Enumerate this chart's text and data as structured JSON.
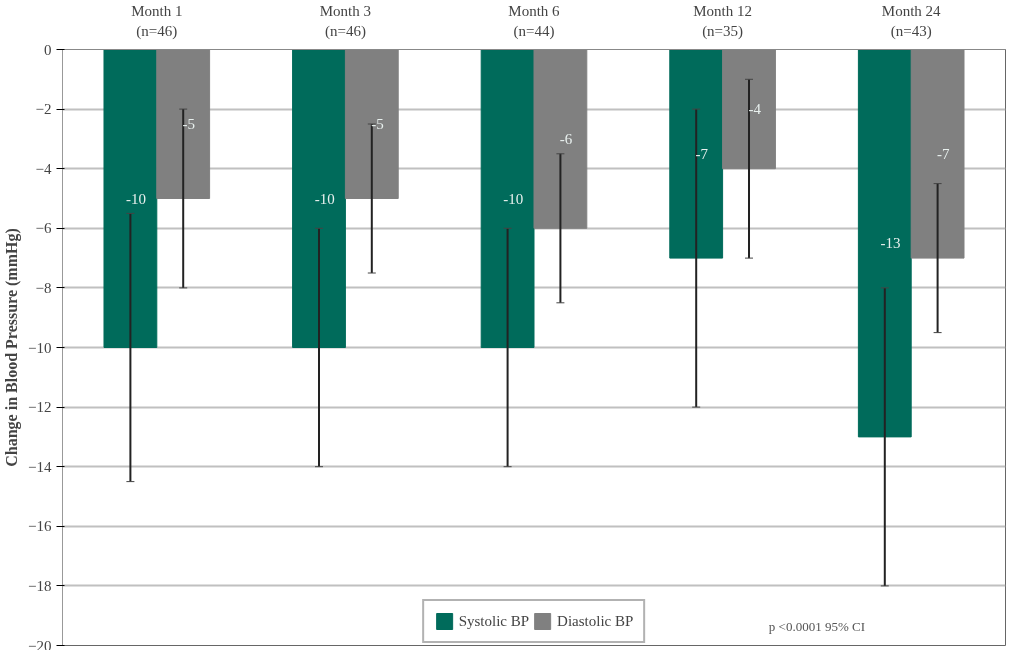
{
  "chart_data": {
    "type": "bar",
    "ylabel": "Change in Blood Pressure (mmHg)",
    "categories": [
      "Month 1\n(n=46)",
      "Month 3\n(n=46)",
      "Month 6\n(n=44)",
      "Month 12\n(n=35)",
      "Month 24\n(n=43)"
    ],
    "series": [
      {
        "name": "Systolic BP",
        "color": "#006b5b",
        "values": [
          -10,
          -10,
          -10,
          -7,
          -13
        ],
        "errors": [
          [
            -14.5,
            -5.5
          ],
          [
            -14,
            -6
          ],
          [
            -14,
            -6
          ],
          [
            -12,
            -2
          ],
          [
            -18,
            -8
          ]
        ]
      },
      {
        "name": "Diastolic BP",
        "color": "#808080",
        "values": [
          -5,
          -5,
          -6,
          -4,
          -7
        ],
        "errors": [
          [
            -8,
            -2
          ],
          [
            -7.5,
            -2.5
          ],
          [
            -8.5,
            -3.5
          ],
          [
            -7,
            -1
          ],
          [
            -9.5,
            -4.5
          ]
        ]
      }
    ],
    "ylim": [
      -20,
      0
    ],
    "yticks": [
      0,
      -2,
      -4,
      -6,
      -8,
      -10,
      -12,
      -14,
      -16,
      -18,
      -20
    ],
    "grid": "y",
    "legend": "bottom",
    "data_labels": true,
    "annotations": [
      "p <0.0001 95% CI"
    ]
  }
}
